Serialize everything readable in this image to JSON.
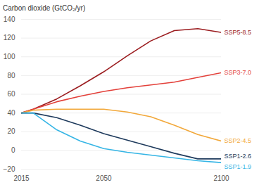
{
  "chart_data": {
    "type": "line",
    "y_label": "Carbon dioxide (GtCO₂/yr)",
    "x": [
      2015,
      2020,
      2030,
      2040,
      2050,
      2060,
      2070,
      2080,
      2090,
      2100
    ],
    "series": [
      {
        "name": "SSP5-8.5",
        "color": "#9b1c1f",
        "values": [
          40,
          44,
          55,
          69,
          84,
          101,
          117,
          128,
          130,
          126
        ]
      },
      {
        "name": "SSP3-7.0",
        "color": "#e3403a",
        "values": [
          40,
          44,
          52,
          58,
          63,
          67,
          70,
          73,
          78,
          83
        ]
      },
      {
        "name": "SSP2-4.5",
        "color": "#f2a83a",
        "values": [
          40,
          43,
          44,
          44,
          44,
          41,
          36,
          27,
          17,
          10
        ]
      },
      {
        "name": "SSP1-2.6",
        "color": "#1e3a5c",
        "values": [
          40,
          40,
          35,
          27,
          18,
          11,
          4,
          -3,
          -9,
          -9
        ]
      },
      {
        "name": "SSP1-1.9",
        "color": "#35b5e5",
        "values": [
          40,
          40,
          22,
          10,
          2,
          -2,
          -5,
          -8,
          -11,
          -13
        ]
      }
    ],
    "xlim": [
      2015,
      2100
    ],
    "xticks": [
      2015,
      2050,
      2100
    ],
    "ylim": [
      -20,
      140
    ],
    "yticks": [
      -20,
      0,
      20,
      40,
      60,
      80,
      100,
      120,
      140
    ],
    "grid": true
  }
}
